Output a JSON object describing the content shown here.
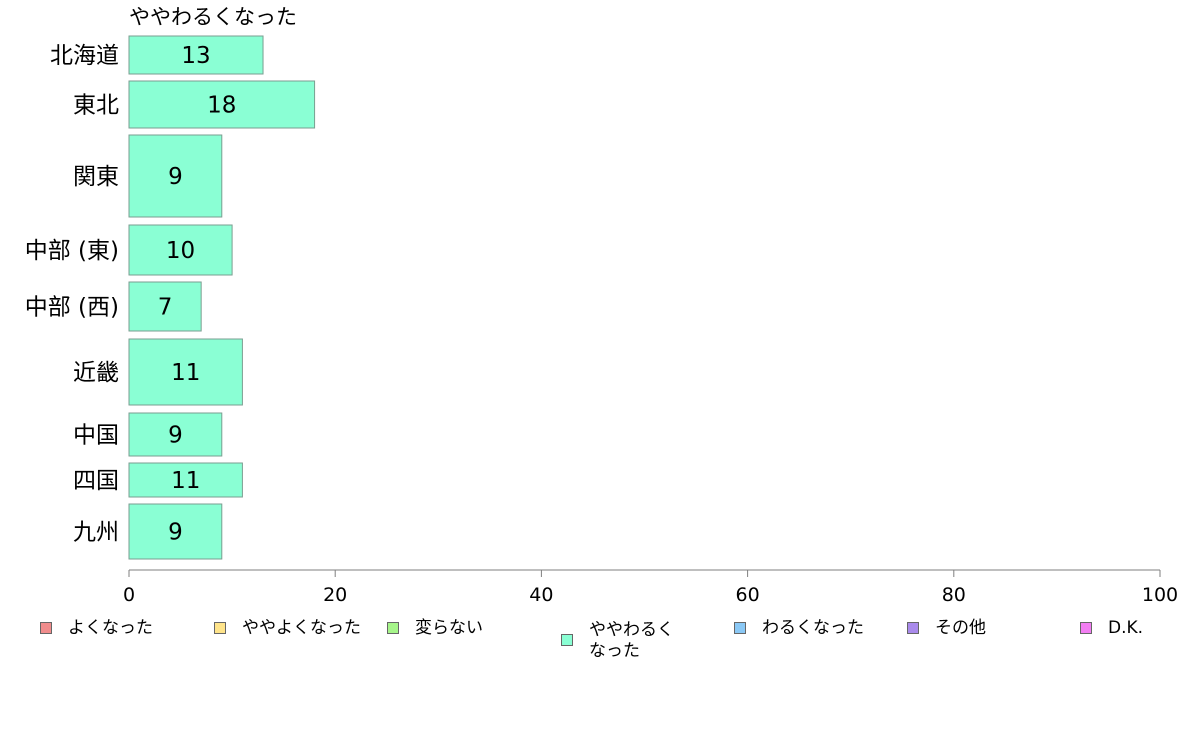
{
  "chart_data": {
    "type": "bar",
    "orientation": "horizontal",
    "title": "ややわるくなった",
    "categories": [
      "北海道",
      "東北",
      "関東",
      "中部 (東)",
      "中部 (西)",
      "近畿",
      "中国",
      "四国",
      "九州"
    ],
    "values": [
      13,
      18,
      9,
      10,
      7,
      11,
      9,
      11,
      9
    ],
    "bar_color": "#8affd4",
    "xlim": [
      0,
      100
    ],
    "xticks": [
      "0",
      "20",
      "40",
      "60",
      "80",
      "100"
    ],
    "xlabel": "",
    "ylabel": "",
    "grid": false,
    "legend_position": "bottom"
  },
  "legend": [
    {
      "label": "よくなった",
      "color": "#f08c8c"
    },
    {
      "label": "ややよくなった",
      "color": "#ffe48a"
    },
    {
      "label": "変らない",
      "color": "#a6f58a"
    },
    {
      "label": "ややわるく\nなった",
      "color": "#8affd4"
    },
    {
      "label": "わるくなった",
      "color": "#8ac8f5"
    },
    {
      "label": "その他",
      "color": "#a98aeb"
    },
    {
      "label": "D.K.",
      "color": "#f27ef2"
    }
  ]
}
